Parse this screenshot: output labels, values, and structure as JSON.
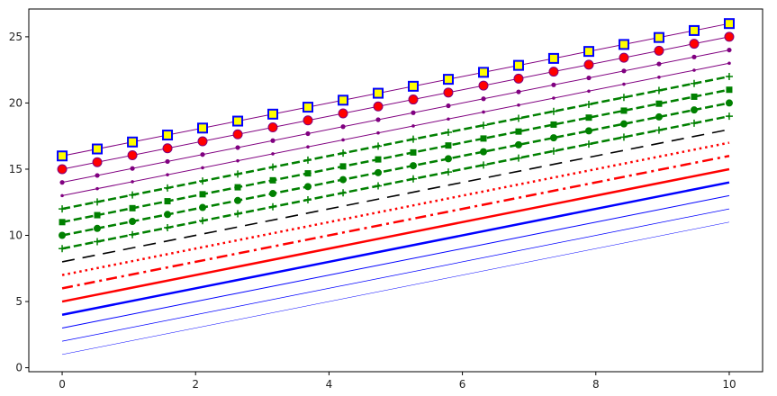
{
  "chart_data": {
    "type": "line",
    "title": "",
    "xlabel": "",
    "ylabel": "",
    "xlim": [
      -0.5,
      10.5
    ],
    "ylim": [
      -0.3,
      27.1
    ],
    "grid": false,
    "legend": "none",
    "x_ticks": [
      0,
      2,
      4,
      6,
      8,
      10
    ],
    "y_ticks": [
      0,
      5,
      10,
      15,
      20,
      25
    ],
    "x_tick_labels": [
      "0",
      "2",
      "4",
      "6",
      "8",
      "10"
    ],
    "y_tick_labels": [
      "0",
      "5",
      "10",
      "15",
      "20",
      "25"
    ],
    "x": [
      0,
      10
    ],
    "series": [
      {
        "intercept": 1,
        "slope": 1,
        "color": "#0000ff",
        "linestyle": "solid",
        "linewidth": 0.5,
        "marker": "none"
      },
      {
        "intercept": 2,
        "slope": 1,
        "color": "#0000ff",
        "linestyle": "solid",
        "linewidth": 0.75,
        "marker": "none"
      },
      {
        "intercept": 3,
        "slope": 1,
        "color": "#0000ff",
        "linestyle": "solid",
        "linewidth": 1,
        "marker": "none"
      },
      {
        "intercept": 4,
        "slope": 1,
        "color": "#0000ff",
        "linestyle": "solid",
        "linewidth": 2.5,
        "marker": "none"
      },
      {
        "intercept": 5,
        "slope": 1,
        "color": "#ff0000",
        "linestyle": "solid",
        "linewidth": 2.5,
        "marker": "none"
      },
      {
        "intercept": 6,
        "slope": 1,
        "color": "#ff0000",
        "linestyle": "dashdot",
        "linewidth": 2.5,
        "marker": "none"
      },
      {
        "intercept": 7,
        "slope": 1,
        "color": "#ff0000",
        "linestyle": "dotted",
        "linewidth": 2.5,
        "marker": "none"
      },
      {
        "intercept": 8,
        "slope": 1,
        "color": "#000000",
        "linestyle": "longdash",
        "linewidth": 1.6,
        "marker": "none"
      },
      {
        "intercept": 9,
        "slope": 1,
        "color": "#008000",
        "linestyle": "dashed",
        "linewidth": 2.5,
        "marker": "plus"
      },
      {
        "intercept": 10,
        "slope": 1,
        "color": "#008000",
        "linestyle": "dashed",
        "linewidth": 2.5,
        "marker": "circle"
      },
      {
        "intercept": 11,
        "slope": 1,
        "color": "#008000",
        "linestyle": "dashed",
        "linewidth": 2.5,
        "marker": "square"
      },
      {
        "intercept": 12,
        "slope": 1,
        "color": "#008000",
        "linestyle": "dashed",
        "linewidth": 2.5,
        "marker": "plus"
      },
      {
        "intercept": 13,
        "slope": 1,
        "color": "#800080",
        "linestyle": "solid",
        "linewidth": 1,
        "marker": "dot"
      },
      {
        "intercept": 14,
        "slope": 1,
        "color": "#800080",
        "linestyle": "solid",
        "linewidth": 1,
        "marker": "dot-large"
      },
      {
        "intercept": 15,
        "slope": 1,
        "color": "#800080",
        "linestyle": "solid",
        "linewidth": 1,
        "marker": "circle-red"
      },
      {
        "intercept": 16,
        "slope": 1,
        "color": "#800080",
        "linestyle": "solid",
        "linewidth": 1,
        "marker": "square-yellow"
      }
    ],
    "marker_x": [
      0,
      0.526,
      1.053,
      1.579,
      2.105,
      2.632,
      3.158,
      3.684,
      4.211,
      4.737,
      5.263,
      5.789,
      6.316,
      6.842,
      7.368,
      7.895,
      8.421,
      8.947,
      9.474,
      10
    ]
  }
}
